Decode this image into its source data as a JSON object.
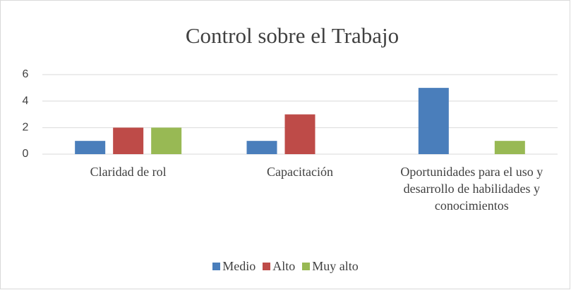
{
  "chart_data": {
    "type": "bar",
    "title": "Control sobre el Trabajo",
    "categories": [
      "Claridad de rol",
      "Capacitación",
      "Oportunidades para el uso y desarrollo de habilidades y conocimientos"
    ],
    "series": [
      {
        "name": "Medio",
        "color": "#4a7ebb",
        "values": [
          1,
          1,
          5
        ]
      },
      {
        "name": "Alto",
        "color": "#be4b48",
        "values": [
          2,
          3,
          0
        ]
      },
      {
        "name": "Muy alto",
        "color": "#98b954",
        "values": [
          2,
          0,
          1
        ]
      }
    ],
    "ylim": [
      0,
      6
    ],
    "yticks": [
      0,
      2,
      4,
      6
    ],
    "grid": true,
    "legend": "bottom"
  }
}
